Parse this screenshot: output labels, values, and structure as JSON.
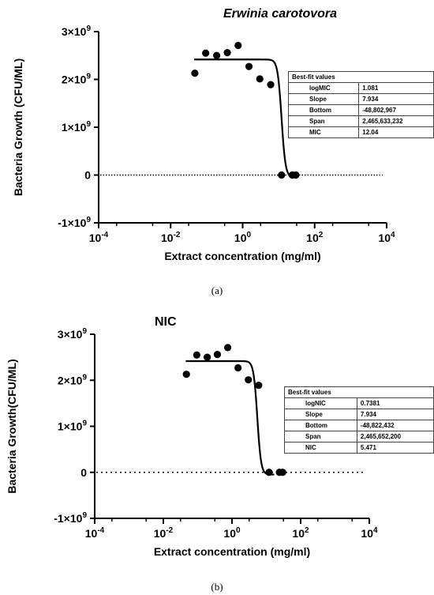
{
  "chart_data": [
    {
      "type": "scatter",
      "panel": "(a)",
      "title": "Erwinia carotovora",
      "xlabel": "Extract concentration (mg/ml)",
      "ylabel": "Bacteria Growth (CFU/ML)",
      "xscale": "log",
      "xlim": [
        0.0001,
        10000
      ],
      "ylim": [
        -1000000000,
        3000000000
      ],
      "x_ticks": [
        0.0001,
        0.01,
        1,
        100,
        10000
      ],
      "x_tick_labels": [
        {
          "base": "10",
          "exp": "-4"
        },
        {
          "base": "10",
          "exp": "-2"
        },
        {
          "base": "10",
          "exp": "0"
        },
        {
          "base": "10",
          "exp": "2"
        },
        {
          "base": "10",
          "exp": "4"
        }
      ],
      "y_ticks": [
        -1000000000,
        0,
        1000000000,
        2000000000,
        3000000000
      ],
      "y_tick_labels": [
        {
          "base": "-1×10",
          "exp": "9"
        },
        {
          "base": "0",
          "exp": ""
        },
        {
          "base": "1×10",
          "exp": "9"
        },
        {
          "base": "2×10",
          "exp": "9"
        },
        {
          "base": "3×10",
          "exp": "9"
        }
      ],
      "points": {
        "x": [
          0.047,
          0.094,
          0.19,
          0.375,
          0.75,
          1.5,
          3,
          6,
          12.04,
          24,
          30
        ],
        "y": [
          2130000000,
          2550000000,
          2500000000,
          2560000000,
          2710000000,
          2270000000,
          2010000000,
          1890000000,
          0,
          0,
          0
        ]
      },
      "curve": {
        "model": "sigmoidal dose-response",
        "top": 2416830265,
        "bottom": -48802967,
        "logMIC": 1.081,
        "slope": 7.934
      },
      "zero_line": "dotted",
      "table": {
        "header": "Best-fit values",
        "rows": [
          {
            "key": "logMIC",
            "value": "1.081"
          },
          {
            "key": "Slope",
            "value": "7.934"
          },
          {
            "key": "Bottom",
            "value": "-48,802,967"
          },
          {
            "key": "Span",
            "value": "2,465,633,232"
          },
          {
            "key": "MIC",
            "value": "12.04"
          }
        ]
      }
    },
    {
      "type": "scatter",
      "panel": "(b)",
      "title": "NIC",
      "xlabel": "Extract concentration (mg/ml)",
      "ylabel": "Bacteria Growth(CFU/ML)",
      "xscale": "log",
      "xlim": [
        0.0001,
        10000
      ],
      "ylim": [
        -1000000000,
        3000000000
      ],
      "x_ticks": [
        0.0001,
        0.01,
        1,
        100,
        10000
      ],
      "x_tick_labels": [
        {
          "base": "10",
          "exp": "-4"
        },
        {
          "base": "10",
          "exp": "-2"
        },
        {
          "base": "10",
          "exp": "0"
        },
        {
          "base": "10",
          "exp": "2"
        },
        {
          "base": "10",
          "exp": "4"
        }
      ],
      "y_ticks": [
        -1000000000,
        0,
        1000000000,
        2000000000,
        3000000000
      ],
      "y_tick_labels": [
        {
          "base": "-1×10",
          "exp": "9"
        },
        {
          "base": "0",
          "exp": ""
        },
        {
          "base": "1×10",
          "exp": "9"
        },
        {
          "base": "2×10",
          "exp": "9"
        },
        {
          "base": "3×10",
          "exp": "9"
        }
      ],
      "points": {
        "x": [
          0.047,
          0.094,
          0.19,
          0.375,
          0.75,
          1.5,
          3,
          6,
          12.04,
          24,
          30
        ],
        "y": [
          2130000000,
          2550000000,
          2500000000,
          2560000000,
          2710000000,
          2270000000,
          2010000000,
          1890000000,
          0,
          0,
          0
        ]
      },
      "curve": {
        "model": "sigmoidal dose-response",
        "top": 2416829768,
        "bottom": -48822432,
        "logMIC": 0.7381,
        "slope": 7.934
      },
      "zero_line": "dotted",
      "table": {
        "header": "Best-fit values",
        "rows": [
          {
            "key": "logNIC",
            "value": "0.7381"
          },
          {
            "key": "Slope",
            "value": "7.934"
          },
          {
            "key": "Bottom",
            "value": "-48,822,432"
          },
          {
            "key": "Span",
            "value": "2,465,652,200"
          },
          {
            "key": "NIC",
            "value": "5.471"
          }
        ]
      }
    }
  ],
  "captions": [
    "(a)",
    "(b)"
  ]
}
